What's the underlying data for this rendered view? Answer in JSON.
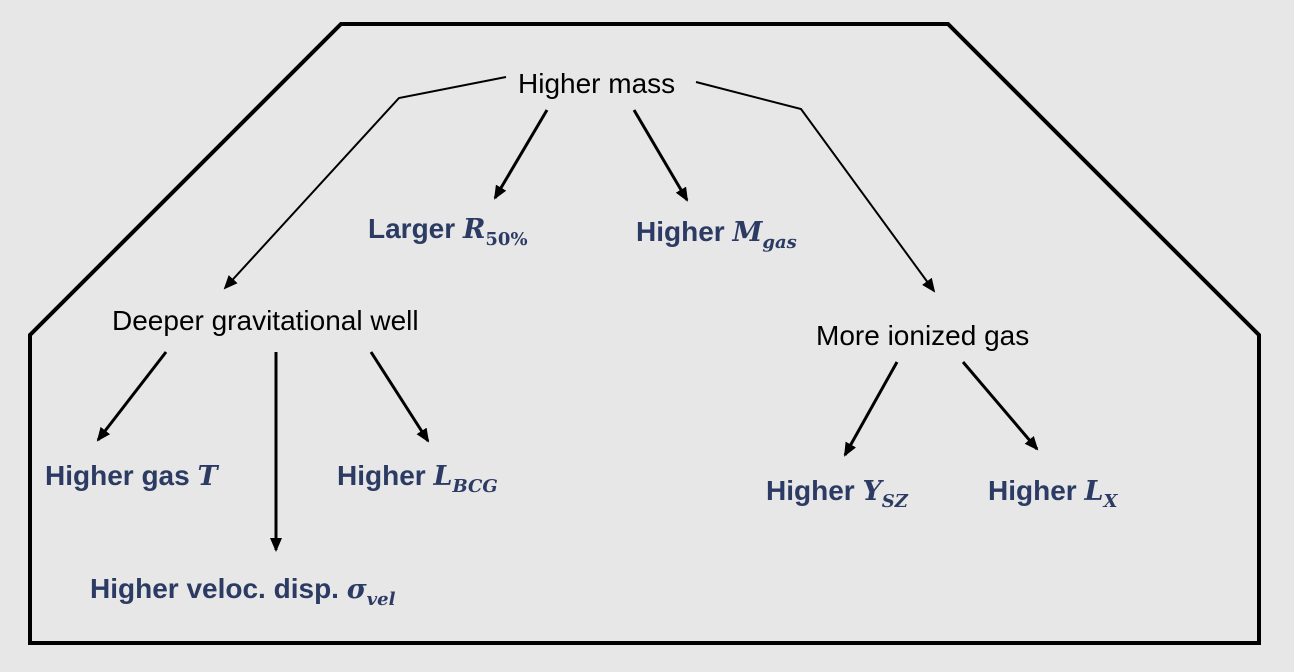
{
  "colors": {
    "background": "#e7e7e7",
    "outline": "#000000",
    "plain_text": "#000000",
    "observable_text": "#2c3b63"
  },
  "nodes": {
    "higher_mass": {
      "text": "Higher mass"
    },
    "deeper_well": {
      "text": "Deeper gravitational well"
    },
    "more_ionized_gas": {
      "text": "More ionized gas"
    },
    "larger_r50": {
      "prefix": "Larger ",
      "symbol": "R",
      "subscript": "50%"
    },
    "higher_mgas": {
      "prefix": "Higher ",
      "symbol": "M",
      "subscript": "gas"
    },
    "higher_gas_t": {
      "prefix": "Higher gas ",
      "symbol": "T",
      "subscript": ""
    },
    "higher_lbcg": {
      "prefix": "Higher ",
      "symbol": "L",
      "subscript": "BCG"
    },
    "higher_veloc_disp": {
      "prefix": "Higher veloc. disp. ",
      "symbol": "σ",
      "subscript": "vel"
    },
    "higher_ysz": {
      "prefix": "Higher ",
      "symbol": "Y",
      "subscript": "SZ"
    },
    "higher_lx": {
      "prefix": "Higher ",
      "symbol": "L",
      "subscript": "X"
    }
  }
}
